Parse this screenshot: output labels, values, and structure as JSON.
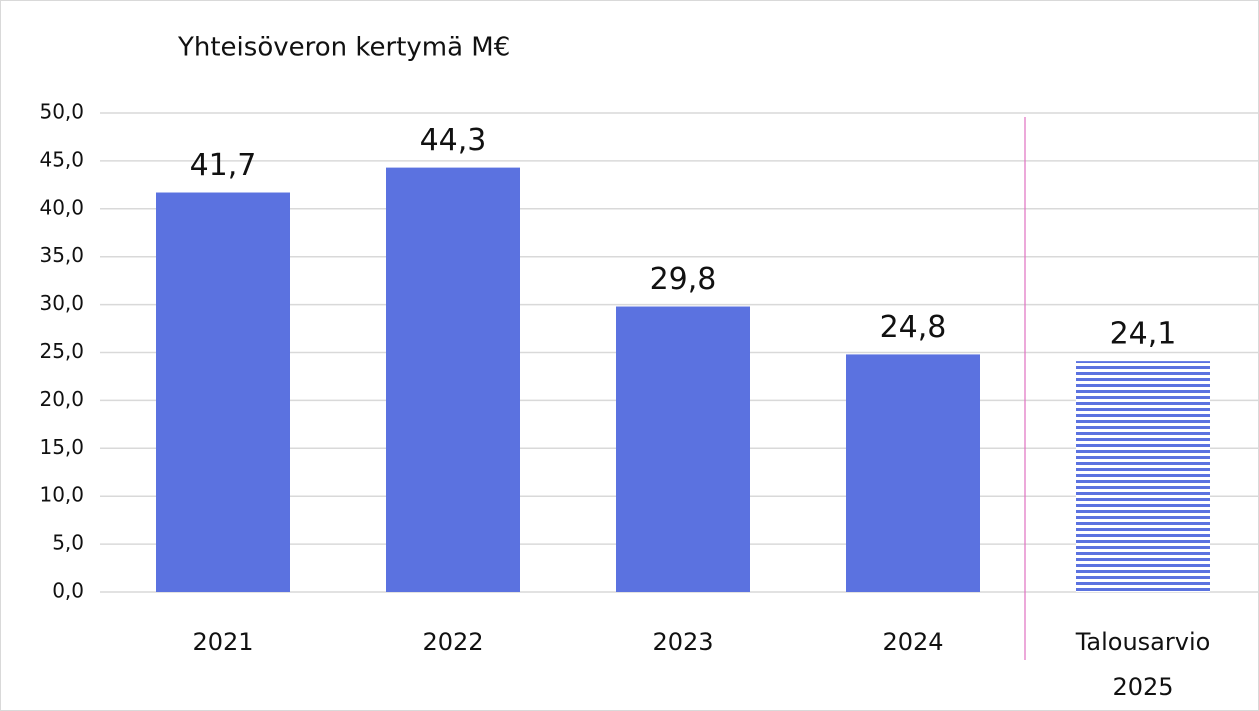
{
  "chart_data": {
    "type": "bar",
    "title": "Yhteisöveron kertymä M€",
    "categories": [
      "2021",
      "2022",
      "2023",
      "2024",
      "Talousarvio 2025"
    ],
    "values": [
      41.7,
      44.3,
      29.8,
      24.8,
      24.1
    ],
    "value_labels": [
      "41,7",
      "44,3",
      "29,8",
      "24,8",
      "24,1"
    ],
    "color": "#5b72e0",
    "patterns": [
      "solid",
      "solid",
      "solid",
      "solid",
      "stripes"
    ],
    "ylim": [
      0,
      50
    ],
    "yticks": [
      {
        "value": 0,
        "label": "0,0"
      },
      {
        "value": 5,
        "label": "5,0"
      },
      {
        "value": 10,
        "label": "10,0"
      },
      {
        "value": 15,
        "label": "15,0"
      },
      {
        "value": 20,
        "label": "20,0"
      },
      {
        "value": 25,
        "label": "25,0"
      },
      {
        "value": 30,
        "label": "30,0"
      },
      {
        "value": 35,
        "label": "35,0"
      },
      {
        "value": 40,
        "label": "40,0"
      },
      {
        "value": 45,
        "label": "45,0"
      },
      {
        "value": 50,
        "label": "50,0"
      }
    ],
    "grid": true
  }
}
